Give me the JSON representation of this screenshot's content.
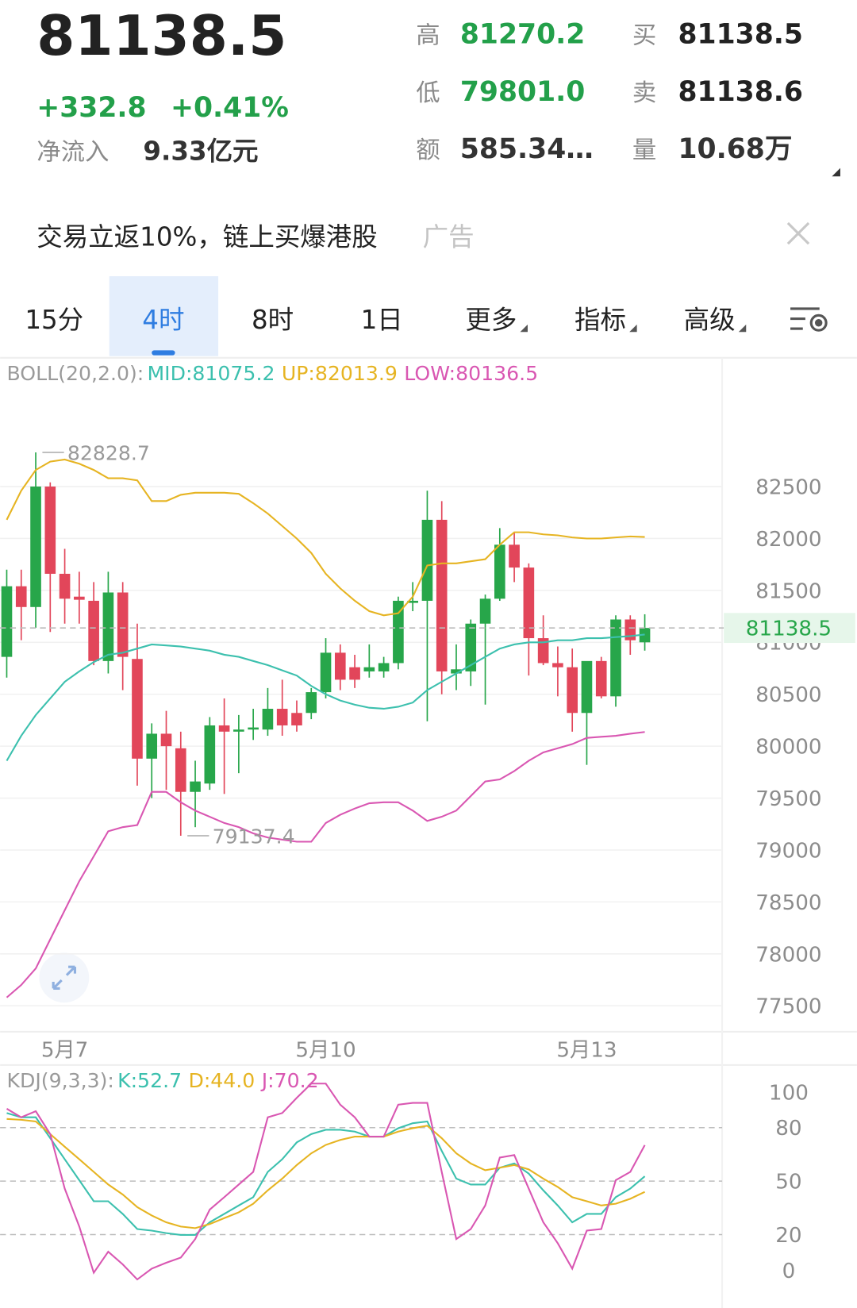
{
  "header": {
    "price": "81138.5",
    "change": "+332.8",
    "change_pct": "+0.41%",
    "change_color": "#23a04a",
    "net_inflow_label": "净流入",
    "net_inflow": "9.33亿元",
    "stats": [
      {
        "label": "高",
        "value": "81270.2",
        "color": "#23a04a"
      },
      {
        "label": "买",
        "value": "81138.5",
        "color": "#222222"
      },
      {
        "label": "低",
        "value": "79801.0",
        "color": "#23a04a"
      },
      {
        "label": "卖",
        "value": "81138.6",
        "color": "#222222"
      },
      {
        "label": "额",
        "value": "585.34…",
        "color": "#333333"
      },
      {
        "label": "量",
        "value": "10.68万",
        "color": "#333333"
      }
    ]
  },
  "ad": {
    "text": "交易立返10%，链上买爆港股",
    "tag": "广告"
  },
  "tabs": [
    "15分",
    "4时",
    "8时",
    "1日",
    "更多",
    "指标",
    "高级"
  ],
  "active_tab": 1,
  "chart_data": [
    {
      "type": "candlestick",
      "indicator": "BOLL(20,2.0):",
      "categories": [
        null,
        null,
        null,
        null,
        "5月7",
        null,
        null,
        null,
        null,
        null,
        null,
        null,
        null,
        null,
        null,
        null,
        null,
        null,
        null,
        null,
        null,
        null,
        "5月10",
        null,
        null,
        null,
        null,
        null,
        null,
        null,
        null,
        null,
        null,
        null,
        null,
        null,
        null,
        null,
        null,
        null,
        "5月13",
        null,
        null,
        null,
        null
      ],
      "open": [
        80860,
        81540,
        81340,
        82500,
        81660,
        81440,
        81400,
        80820,
        81480,
        80840,
        79880,
        80120,
        79980,
        79560,
        79640,
        80200,
        80140,
        80160,
        80160,
        80360,
        80320,
        80320,
        80520,
        80900,
        80760,
        80720,
        80720,
        80800,
        81380,
        81400,
        82180,
        80700,
        80720,
        81180,
        81420,
        81940,
        81720,
        81040,
        80800,
        80760,
        80320,
        80820,
        80480,
        81220,
        81000
      ],
      "high": [
        81700,
        81700,
        82828.7,
        82540,
        81900,
        81680,
        81580,
        81680,
        81580,
        81180,
        80220,
        80340,
        80140,
        79860,
        80280,
        80460,
        80300,
        80360,
        80560,
        80640,
        80440,
        80560,
        81040,
        80980,
        80880,
        80980,
        80860,
        81440,
        81580,
        82460,
        82360,
        80980,
        81220,
        81460,
        82100,
        82060,
        81760,
        81260,
        80960,
        80940,
        80780,
        80860,
        81260,
        81260,
        81270.2
      ],
      "low": [
        80660,
        81020,
        81140,
        81100,
        81180,
        81180,
        80780,
        80700,
        80540,
        79620,
        79500,
        79580,
        79137.4,
        79220,
        79580,
        79540,
        79740,
        80060,
        80100,
        80100,
        80140,
        80260,
        80460,
        80540,
        80560,
        80660,
        80660,
        80740,
        81300,
        80240,
        80500,
        80540,
        80580,
        80400,
        81400,
        81580,
        80680,
        80780,
        80480,
        80140,
        79820,
        80460,
        80380,
        80880,
        80920
      ],
      "close": [
        81540,
        81340,
        82500,
        81660,
        81420,
        81410,
        80820,
        81480,
        80860,
        79880,
        80120,
        80000,
        79560,
        79660,
        80200,
        80140,
        80160,
        80180,
        80360,
        80200,
        80200,
        80520,
        80900,
        80640,
        80640,
        80760,
        80800,
        81400,
        81400,
        82180,
        80720,
        80740,
        81180,
        81420,
        81940,
        81720,
        81040,
        80800,
        80760,
        80320,
        80820,
        80480,
        81220,
        81020,
        81138.5
      ],
      "up_color": "#27a64a",
      "down_color": "#e2465a",
      "series": [
        {
          "name": "MID:81075.2",
          "color": "#3cc0ae",
          "values": [
            79860,
            80100,
            80300,
            80460,
            80620,
            80720,
            80810,
            80880,
            80900,
            80940,
            80980,
            80970,
            80960,
            80940,
            80920,
            80880,
            80860,
            80820,
            80780,
            80730,
            80680,
            80580,
            80500,
            80440,
            80400,
            80370,
            80360,
            80380,
            80420,
            80540,
            80620,
            80700,
            80780,
            80860,
            80940,
            80980,
            81000,
            81000,
            81020,
            81020,
            81040,
            81040,
            81050,
            81060,
            81075.2
          ]
        },
        {
          "name": "UP:82013.9",
          "color": "#e6b422",
          "values": [
            82180,
            82460,
            82660,
            82740,
            82760,
            82720,
            82660,
            82580,
            82580,
            82560,
            82360,
            82360,
            82420,
            82440,
            82440,
            82440,
            82430,
            82340,
            82240,
            82120,
            82000,
            81860,
            81660,
            81520,
            81400,
            81300,
            81260,
            81280,
            81440,
            81740,
            81760,
            81760,
            81780,
            81800,
            81940,
            82060,
            82060,
            82040,
            82030,
            82010,
            82000,
            82000,
            82010,
            82020,
            82013.9
          ]
        },
        {
          "name": "LOW:80136.5",
          "color": "#d957b2",
          "values": [
            77580,
            77700,
            77860,
            78140,
            78420,
            78700,
            78940,
            79180,
            79220,
            79240,
            79560,
            79560,
            79460,
            79380,
            79320,
            79260,
            79220,
            79160,
            79120,
            79100,
            79080,
            79080,
            79260,
            79340,
            79400,
            79450,
            79460,
            79460,
            79380,
            79280,
            79320,
            79380,
            79520,
            79660,
            79680,
            79760,
            79860,
            79940,
            79980,
            80020,
            80080,
            80090,
            80100,
            80120,
            80136.5
          ]
        }
      ],
      "ylim": [
        77250,
        83740
      ],
      "yticks": [
        77500,
        78000,
        78500,
        79000,
        79500,
        80000,
        80500,
        81000,
        81500,
        82000,
        82500
      ],
      "grid": true
    },
    {
      "type": "line",
      "indicator": "KDJ(9,3,3):",
      "series": [
        {
          "name": "K:52.7",
          "color": "#3cc0ae",
          "values": [
            88.2,
            85.8,
            85.8,
            74.1,
            62.3,
            50.5,
            38.7,
            38.7,
            31.6,
            23.1,
            22.2,
            20.8,
            19.8,
            19.8,
            26.9,
            31.6,
            36.3,
            41.0,
            55.2,
            62.3,
            71.7,
            76.4,
            78.8,
            78.8,
            77.8,
            75.0,
            75.0,
            79.7,
            82.5,
            83.5,
            67.0,
            51.4,
            48.1,
            48.1,
            57.5,
            59.9,
            54.2,
            44.8,
            36.3,
            26.9,
            31.6,
            31.6,
            41.0,
            45.8,
            52.7
          ]
        },
        {
          "name": "D:44.0",
          "color": "#e6b422",
          "values": [
            84.9,
            84.4,
            83.5,
            76.4,
            69.3,
            62.3,
            55.2,
            48.1,
            42.5,
            35.4,
            30.7,
            26.9,
            24.5,
            23.6,
            25.9,
            29.2,
            32.5,
            37.3,
            44.8,
            51.4,
            59.0,
            65.6,
            70.3,
            73.1,
            75.0,
            75.0,
            75.0,
            77.8,
            79.7,
            81.1,
            74.1,
            65.6,
            59.9,
            56.1,
            57.5,
            59.0,
            56.6,
            51.4,
            46.7,
            41.0,
            38.7,
            36.3,
            37.3,
            40.1,
            44.0
          ]
        },
        {
          "name": "J:70.2",
          "color": "#d957b2",
          "values": [
            90.6,
            85.8,
            89.2,
            76.4,
            45.8,
            24.5,
            -1.4,
            10.4,
            3.3,
            -5.2,
            0.9,
            4.2,
            7.1,
            17.5,
            34.0,
            41.0,
            48.1,
            55.2,
            85.8,
            88.2,
            96.7,
            104.7,
            104.7,
            92.9,
            85.8,
            75.0,
            75.0,
            92.9,
            93.9,
            93.9,
            55.2,
            17.5,
            23.1,
            36.3,
            63.2,
            64.6,
            45.8,
            26.9,
            15.1,
            0.9,
            22.2,
            23.1,
            50.5,
            55.2,
            70.2
          ]
        }
      ],
      "ylim": [
        -15.6,
        114.2
      ],
      "yticks": [
        0,
        20,
        50,
        80,
        100
      ],
      "grid": true
    }
  ]
}
